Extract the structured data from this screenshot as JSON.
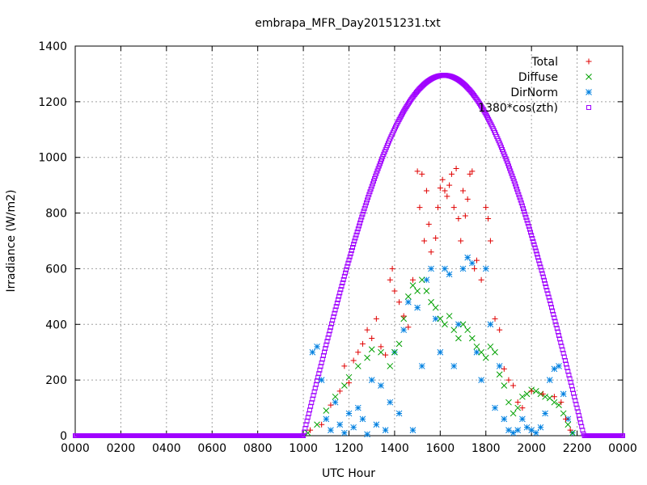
{
  "chart_data": {
    "type": "scatter",
    "title": "embrapa_MFR_Day20151231.txt",
    "xlabel": "UTC Hour",
    "ylabel": "Irradiance (W/m2)",
    "xlim": [
      0,
      2400
    ],
    "ylim": [
      0,
      1400
    ],
    "x_ticks": [
      "0000",
      "0200",
      "0400",
      "0600",
      "0800",
      "1000",
      "1200",
      "1400",
      "1600",
      "1800",
      "2000",
      "2200",
      "0000"
    ],
    "y_ticks": [
      "0",
      "200",
      "400",
      "600",
      "800",
      "1000",
      "1200",
      "1400"
    ],
    "grid": true,
    "legend_position": "top-right",
    "clear_sky_model": {
      "peak_value": 1295,
      "peak_hour": 1617,
      "sunrise_hour": 1000,
      "sunset_hour": 2230
    },
    "series": [
      {
        "name": "Total",
        "marker": "plus",
        "color": "#e00000",
        "points": [
          [
            1030,
            20
          ],
          [
            1080,
            40
          ],
          [
            1120,
            110
          ],
          [
            1160,
            160
          ],
          [
            1180,
            250
          ],
          [
            1200,
            190
          ],
          [
            1220,
            270
          ],
          [
            1240,
            300
          ],
          [
            1260,
            330
          ],
          [
            1280,
            380
          ],
          [
            1300,
            350
          ],
          [
            1320,
            420
          ],
          [
            1340,
            320
          ],
          [
            1360,
            290
          ],
          [
            1380,
            560
          ],
          [
            1390,
            600
          ],
          [
            1400,
            520
          ],
          [
            1420,
            480
          ],
          [
            1440,
            430
          ],
          [
            1460,
            390
          ],
          [
            1480,
            560
          ],
          [
            1500,
            950
          ],
          [
            1510,
            820
          ],
          [
            1520,
            940
          ],
          [
            1530,
            700
          ],
          [
            1540,
            880
          ],
          [
            1550,
            760
          ],
          [
            1560,
            660
          ],
          [
            1580,
            710
          ],
          [
            1590,
            820
          ],
          [
            1600,
            890
          ],
          [
            1610,
            920
          ],
          [
            1620,
            880
          ],
          [
            1630,
            860
          ],
          [
            1640,
            900
          ],
          [
            1650,
            940
          ],
          [
            1660,
            820
          ],
          [
            1670,
            960
          ],
          [
            1680,
            780
          ],
          [
            1690,
            700
          ],
          [
            1700,
            880
          ],
          [
            1710,
            790
          ],
          [
            1720,
            850
          ],
          [
            1730,
            940
          ],
          [
            1740,
            950
          ],
          [
            1750,
            600
          ],
          [
            1760,
            630
          ],
          [
            1780,
            560
          ],
          [
            1800,
            820
          ],
          [
            1810,
            780
          ],
          [
            1820,
            700
          ],
          [
            1840,
            420
          ],
          [
            1860,
            380
          ],
          [
            1880,
            240
          ],
          [
            1900,
            200
          ],
          [
            1920,
            180
          ],
          [
            1940,
            120
          ],
          [
            1960,
            100
          ],
          [
            2000,
            160
          ],
          [
            2050,
            150
          ],
          [
            2100,
            140
          ],
          [
            2130,
            120
          ],
          [
            2150,
            60
          ],
          [
            2170,
            20
          ]
        ]
      },
      {
        "name": "Diffuse",
        "marker": "cross",
        "color": "#00a000",
        "points": [
          [
            1020,
            10
          ],
          [
            1060,
            40
          ],
          [
            1100,
            90
          ],
          [
            1140,
            140
          ],
          [
            1180,
            180
          ],
          [
            1200,
            210
          ],
          [
            1240,
            250
          ],
          [
            1280,
            280
          ],
          [
            1300,
            310
          ],
          [
            1340,
            300
          ],
          [
            1380,
            250
          ],
          [
            1400,
            300
          ],
          [
            1420,
            330
          ],
          [
            1440,
            420
          ],
          [
            1460,
            500
          ],
          [
            1480,
            540
          ],
          [
            1500,
            520
          ],
          [
            1520,
            560
          ],
          [
            1540,
            520
          ],
          [
            1560,
            480
          ],
          [
            1580,
            460
          ],
          [
            1600,
            420
          ],
          [
            1620,
            400
          ],
          [
            1640,
            430
          ],
          [
            1660,
            380
          ],
          [
            1680,
            350
          ],
          [
            1700,
            400
          ],
          [
            1720,
            380
          ],
          [
            1740,
            350
          ],
          [
            1760,
            320
          ],
          [
            1780,
            300
          ],
          [
            1800,
            280
          ],
          [
            1820,
            320
          ],
          [
            1840,
            300
          ],
          [
            1860,
            220
          ],
          [
            1880,
            180
          ],
          [
            1900,
            120
          ],
          [
            1920,
            80
          ],
          [
            1940,
            100
          ],
          [
            1960,
            140
          ],
          [
            1980,
            150
          ],
          [
            2000,
            165
          ],
          [
            2020,
            160
          ],
          [
            2040,
            150
          ],
          [
            2060,
            140
          ],
          [
            2080,
            135
          ],
          [
            2100,
            120
          ],
          [
            2120,
            110
          ],
          [
            2140,
            80
          ],
          [
            2160,
            40
          ],
          [
            2180,
            10
          ]
        ]
      },
      {
        "name": "DirNorm",
        "marker": "star",
        "color": "#0080e0",
        "points": [
          [
            1040,
            300
          ],
          [
            1060,
            320
          ],
          [
            1080,
            200
          ],
          [
            1100,
            60
          ],
          [
            1120,
            20
          ],
          [
            1140,
            120
          ],
          [
            1160,
            40
          ],
          [
            1180,
            10
          ],
          [
            1200,
            80
          ],
          [
            1220,
            30
          ],
          [
            1240,
            100
          ],
          [
            1260,
            60
          ],
          [
            1280,
            5
          ],
          [
            1300,
            200
          ],
          [
            1320,
            40
          ],
          [
            1340,
            180
          ],
          [
            1360,
            20
          ],
          [
            1380,
            120
          ],
          [
            1400,
            300
          ],
          [
            1420,
            80
          ],
          [
            1440,
            380
          ],
          [
            1460,
            480
          ],
          [
            1480,
            20
          ],
          [
            1500,
            460
          ],
          [
            1520,
            250
          ],
          [
            1540,
            560
          ],
          [
            1560,
            600
          ],
          [
            1580,
            420
          ],
          [
            1600,
            300
          ],
          [
            1620,
            600
          ],
          [
            1640,
            580
          ],
          [
            1660,
            250
          ],
          [
            1680,
            400
          ],
          [
            1700,
            600
          ],
          [
            1720,
            640
          ],
          [
            1740,
            620
          ],
          [
            1760,
            300
          ],
          [
            1780,
            200
          ],
          [
            1800,
            600
          ],
          [
            1820,
            400
          ],
          [
            1840,
            100
          ],
          [
            1860,
            250
          ],
          [
            1880,
            60
          ],
          [
            1900,
            20
          ],
          [
            1920,
            10
          ],
          [
            1940,
            20
          ],
          [
            1960,
            60
          ],
          [
            1980,
            30
          ],
          [
            2000,
            20
          ],
          [
            2020,
            10
          ],
          [
            2040,
            30
          ],
          [
            2060,
            80
          ],
          [
            2080,
            200
          ],
          [
            2100,
            240
          ],
          [
            2120,
            250
          ],
          [
            2140,
            150
          ],
          [
            2160,
            60
          ],
          [
            2180,
            10
          ]
        ]
      },
      {
        "name": "1380*cos(zth)",
        "marker": "square",
        "color": "#a000ff",
        "model": "clear_sky_model"
      }
    ]
  }
}
